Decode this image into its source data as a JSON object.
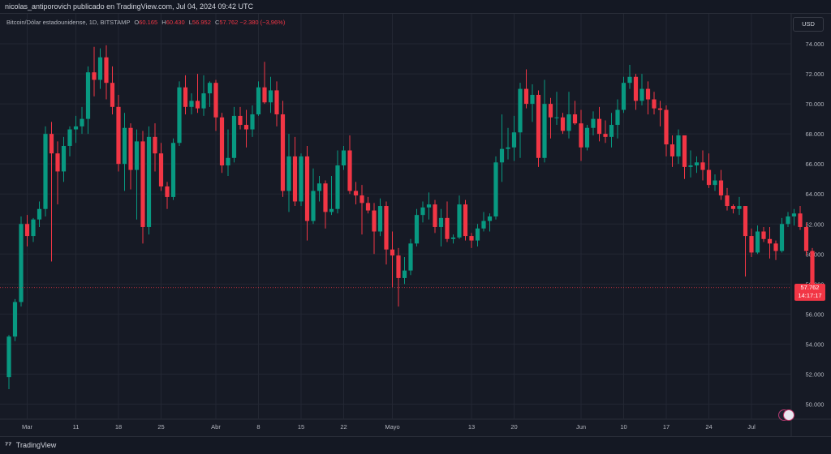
{
  "header": {
    "publish_line": "nicolas_antiporovich publicado en TradingView.com, Jul 04, 2024 09:42 UTC"
  },
  "legend": {
    "symbol": "Bitcoin/Dólar estadounidense, 1D, BITSTAMP",
    "o_label": "O",
    "o_value": "60.165",
    "h_label": "H",
    "h_value": "60.430",
    "l_label": "L",
    "l_value": "56.952",
    "c_label": "C",
    "c_value": "57.762",
    "change": "−2.380 (−3,96%)"
  },
  "currency_button": "USD",
  "last_price": {
    "price": "57.762",
    "countdown": "14:17:17"
  },
  "footer": {
    "brand": "TradingView"
  },
  "colors": {
    "up": "#089981",
    "down": "#f23645",
    "background": "#161a25",
    "grid": "#232733",
    "axis_text": "#b2b5be"
  },
  "chart_data": {
    "type": "candlestick",
    "y_ticks": [
      "74.000",
      "72.000",
      "70.000",
      "68.000",
      "66.000",
      "64.000",
      "62.000",
      "60.000",
      "58.000",
      "56.000",
      "54.000",
      "52.000",
      "50.000"
    ],
    "y_tick_values": [
      74000,
      72000,
      70000,
      68000,
      66000,
      64000,
      62000,
      60000,
      58000,
      56000,
      54000,
      52000,
      50000
    ],
    "ylim": [
      49000,
      76000
    ],
    "x_ticks": [
      "Mar",
      "11",
      "18",
      "25",
      "Abr",
      "8",
      "15",
      "22",
      "Mayo",
      "13",
      "20",
      "Jun",
      "10",
      "17",
      "24",
      "Jul"
    ],
    "x_tick_index": [
      3,
      11,
      18,
      25,
      34,
      41,
      48,
      55,
      63,
      76,
      83,
      94,
      101,
      108,
      115,
      122
    ],
    "last_close": 57762,
    "candles": [
      [
        51800,
        54600,
        51000,
        54500
      ],
      [
        54500,
        57000,
        54200,
        56800
      ],
      [
        56800,
        62500,
        56500,
        62000
      ],
      [
        62000,
        62600,
        60500,
        61200
      ],
      [
        61200,
        62400,
        60800,
        62300
      ],
      [
        62300,
        63500,
        61800,
        63000
      ],
      [
        63000,
        68500,
        62500,
        68000
      ],
      [
        68000,
        68800,
        59500,
        66700
      ],
      [
        66700,
        67500,
        63300,
        65500
      ],
      [
        65500,
        67800,
        64800,
        67200
      ],
      [
        67200,
        68500,
        66500,
        68300
      ],
      [
        68300,
        69200,
        67400,
        68500
      ],
      [
        68500,
        69800,
        68000,
        69000
      ],
      [
        69000,
        72500,
        68000,
        72100
      ],
      [
        72100,
        73800,
        70500,
        71600
      ],
      [
        71600,
        73700,
        71000,
        73100
      ],
      [
        73100,
        73900,
        70300,
        71400
      ],
      [
        71400,
        72500,
        69300,
        69800
      ],
      [
        69800,
        70600,
        65500,
        66000
      ],
      [
        66000,
        69400,
        64200,
        68400
      ],
      [
        68400,
        68700,
        64300,
        65600
      ],
      [
        65600,
        68300,
        62300,
        67500
      ],
      [
        67500,
        68200,
        60700,
        61800
      ],
      [
        61800,
        68500,
        61300,
        67800
      ],
      [
        67800,
        68700,
        65500,
        66700
      ],
      [
        66700,
        67400,
        64200,
        64500
      ],
      [
        64500,
        64800,
        63000,
        63800
      ],
      [
        63800,
        67700,
        63600,
        67400
      ],
      [
        67400,
        71500,
        67200,
        71100
      ],
      [
        71100,
        71900,
        69300,
        69800
      ],
      [
        69800,
        70700,
        69300,
        70200
      ],
      [
        70200,
        72000,
        69400,
        69700
      ],
      [
        69700,
        71900,
        69200,
        70700
      ],
      [
        70700,
        71500,
        69800,
        71400
      ],
      [
        71400,
        71600,
        68200,
        69100
      ],
      [
        69100,
        69400,
        65400,
        65900
      ],
      [
        65900,
        68300,
        65200,
        66400
      ],
      [
        66400,
        69800,
        66100,
        69200
      ],
      [
        69200,
        69800,
        68300,
        68600
      ],
      [
        68600,
        69600,
        67100,
        68300
      ],
      [
        68300,
        69900,
        67800,
        69300
      ],
      [
        69300,
        71500,
        69200,
        71100
      ],
      [
        71100,
        72800,
        70000,
        70100
      ],
      [
        70100,
        71800,
        69400,
        70900
      ],
      [
        70900,
        71500,
        68500,
        69300
      ],
      [
        69300,
        70200,
        63800,
        64200
      ],
      [
        64200,
        68000,
        62800,
        66500
      ],
      [
        66500,
        67800,
        63200,
        63500
      ],
      [
        63500,
        66700,
        63200,
        66500
      ],
      [
        66500,
        67200,
        60900,
        62200
      ],
      [
        62200,
        65700,
        62000,
        64200
      ],
      [
        64200,
        65200,
        63500,
        64700
      ],
      [
        64700,
        64900,
        61700,
        62800
      ],
      [
        62800,
        65200,
        62600,
        63000
      ],
      [
        63000,
        66900,
        62700,
        65900
      ],
      [
        65900,
        67200,
        65600,
        66900
      ],
      [
        66900,
        67900,
        64000,
        64200
      ],
      [
        64200,
        64800,
        63300,
        63900
      ],
      [
        63900,
        64600,
        61300,
        63400
      ],
      [
        63400,
        63800,
        62700,
        62900
      ],
      [
        62900,
        63400,
        60000,
        61500
      ],
      [
        61500,
        63700,
        61200,
        63200
      ],
      [
        63200,
        63500,
        59300,
        60300
      ],
      [
        60300,
        61500,
        57800,
        59900
      ],
      [
        59900,
        60400,
        56500,
        58400
      ],
      [
        58400,
        59800,
        58000,
        58900
      ],
      [
        58900,
        61000,
        58600,
        60700
      ],
      [
        60700,
        63000,
        60500,
        62600
      ],
      [
        62600,
        63500,
        62100,
        63100
      ],
      [
        63100,
        64100,
        62300,
        63300
      ],
      [
        63300,
        63600,
        61400,
        61800
      ],
      [
        61800,
        63000,
        60500,
        62400
      ],
      [
        62400,
        63500,
        60800,
        61000
      ],
      [
        61000,
        61300,
        60700,
        61100
      ],
      [
        61100,
        63900,
        61000,
        63300
      ],
      [
        63300,
        63600,
        60900,
        61200
      ],
      [
        61200,
        61400,
        60400,
        60900
      ],
      [
        60900,
        62000,
        60500,
        61700
      ],
      [
        61700,
        62800,
        61500,
        62200
      ],
      [
        62200,
        62700,
        61500,
        62500
      ],
      [
        62500,
        66500,
        62300,
        66100
      ],
      [
        66100,
        69300,
        64800,
        67000
      ],
      [
        67000,
        68400,
        66300,
        67100
      ],
      [
        67100,
        69200,
        66200,
        68100
      ],
      [
        68100,
        71400,
        66400,
        71000
      ],
      [
        71000,
        72300,
        69700,
        70000
      ],
      [
        70000,
        71300,
        68800,
        70600
      ],
      [
        70600,
        70900,
        65800,
        66400
      ],
      [
        66400,
        71600,
        66100,
        70000
      ],
      [
        70000,
        70400,
        67700,
        69100
      ],
      [
        69100,
        70800,
        68600,
        69100
      ],
      [
        69100,
        69400,
        68000,
        68200
      ],
      [
        68200,
        70800,
        67700,
        69300
      ],
      [
        69300,
        70200,
        68600,
        68700
      ],
      [
        68700,
        69600,
        66200,
        67100
      ],
      [
        67100,
        68600,
        66900,
        68400
      ],
      [
        68400,
        69500,
        67900,
        69000
      ],
      [
        69000,
        69800,
        67500,
        68000
      ],
      [
        68000,
        68900,
        67400,
        67800
      ],
      [
        67800,
        69400,
        67100,
        68600
      ],
      [
        68600,
        70300,
        67700,
        69600
      ],
      [
        69600,
        71800,
        69400,
        71400
      ],
      [
        71400,
        72600,
        71000,
        71800
      ],
      [
        71800,
        72000,
        69600,
        70200
      ],
      [
        70200,
        72000,
        69900,
        71000
      ],
      [
        71000,
        71500,
        69300,
        70300
      ],
      [
        70300,
        70800,
        69300,
        69700
      ],
      [
        69700,
        70200,
        68500,
        69600
      ],
      [
        69600,
        69900,
        66500,
        67300
      ],
      [
        67300,
        67900,
        65800,
        66500
      ],
      [
        66500,
        68300,
        66000,
        67900
      ],
      [
        67900,
        67900,
        65000,
        65800
      ],
      [
        65800,
        66900,
        65100,
        65900
      ],
      [
        65900,
        66500,
        65400,
        66100
      ],
      [
        66100,
        66900,
        64900,
        65600
      ],
      [
        65600,
        66700,
        64400,
        64600
      ],
      [
        64600,
        65300,
        64200,
        64900
      ],
      [
        64900,
        65600,
        63600,
        63900
      ],
      [
        63900,
        64400,
        62900,
        63200
      ],
      [
        63200,
        63300,
        62700,
        63000
      ],
      [
        63000,
        63800,
        62600,
        63200
      ],
      [
        63200,
        63200,
        58500,
        61200
      ],
      [
        61200,
        61700,
        59800,
        60100
      ],
      [
        60100,
        61900,
        60000,
        61500
      ],
      [
        61500,
        61800,
        60800,
        61000
      ],
      [
        61000,
        61800,
        59700,
        60700
      ],
      [
        60700,
        60900,
        59600,
        60200
      ],
      [
        60200,
        62400,
        60100,
        62000
      ],
      [
        62000,
        62800,
        61800,
        62500
      ],
      [
        62500,
        63000,
        61900,
        62700
      ],
      [
        62700,
        63200,
        61600,
        61800
      ],
      [
        61800,
        62100,
        59900,
        60200
      ],
      [
        60200,
        60400,
        56900,
        57762
      ]
    ]
  }
}
